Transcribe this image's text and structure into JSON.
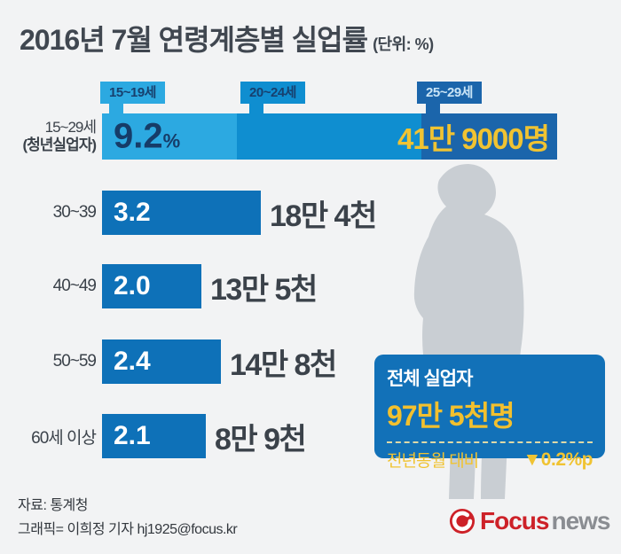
{
  "title": "2016년 7월 연령계층별 실업률",
  "unit": "(단위: %)",
  "age_tabs": [
    "15~19세",
    "20~24세",
    "25~29세"
  ],
  "rows": [
    {
      "label": "15~29세",
      "sublabel": "(청년실업자)",
      "rate": "9.2",
      "rate_suffix": "%",
      "count": "41만 9000명"
    },
    {
      "label": "30~39",
      "rate": "3.2",
      "count": "18만 4천"
    },
    {
      "label": "40~49",
      "rate": "2.0",
      "count": "13만 5천"
    },
    {
      "label": "50~59",
      "rate": "2.4",
      "count": "14만 8천"
    },
    {
      "label": "60세 이상",
      "rate": "2.1",
      "count": "8만 9천"
    }
  ],
  "total_box": {
    "title": "전체 실업자",
    "value": "97만 5천명",
    "compare_label": "전년동월 대비",
    "compare_value": "▼0.2%p"
  },
  "footer": {
    "source": "자료: 통계청",
    "credit": "그래픽= 이희정 기자 hj1925@focus.kr",
    "logo_focus": "Focus",
    "logo_news": "news"
  },
  "colors": {
    "background": "#f2f3f4",
    "light_blue": "#2ca9e1",
    "mid_blue": "#0f8ed0",
    "dark_blue": "#1b65ab",
    "bar_blue": "#0e71b8",
    "box_blue": "#1271b8",
    "highlight_yellow": "#f0c332",
    "navy_text": "#163c68",
    "text_dark": "#3b424a",
    "silhouette_gray": "#c9ced3",
    "logo_red": "#cd2128",
    "logo_gray": "#8a8d92"
  },
  "chart_data": {
    "type": "bar",
    "title": "2016년 7월 연령계층별 실업률",
    "unit": "%",
    "categories": [
      "15~29세 (청년실업자)",
      "30~39",
      "40~49",
      "50~59",
      "60세 이상"
    ],
    "values": [
      9.2,
      3.2,
      2.0,
      2.4,
      2.1
    ],
    "counts": [
      "41만 9000명",
      "18만 4천",
      "13만 5천",
      "14만 8천",
      "8만 9천"
    ],
    "youth_bar_segments": [
      "15~19세",
      "20~24세",
      "25~29세"
    ],
    "orientation": "horizontal",
    "xlim": [
      0,
      10
    ],
    "grid": false,
    "total": {
      "label": "전체 실업자",
      "value": "97만 5천명",
      "yoy_label": "전년동월 대비",
      "yoy_change": "▼0.2%p"
    }
  }
}
